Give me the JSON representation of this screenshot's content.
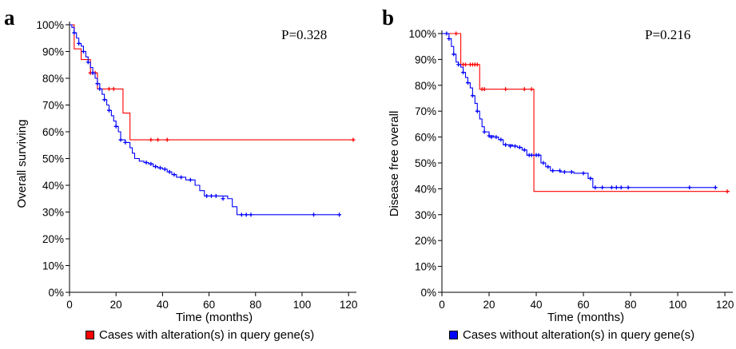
{
  "colors": {
    "altered": "#ff0000",
    "unaltered": "#0000ff",
    "axis": "#000000"
  },
  "legend": {
    "altered_label": "Cases with alteration(s) in query gene(s)",
    "unaltered_label": "Cases without alteration(s) in query gene(s)"
  },
  "chart_data": [
    {
      "type": "line",
      "step": true,
      "panel_label": "a",
      "annotation": "P=0.328",
      "xlabel": "Time (months)",
      "ylabel": "Overall surviving",
      "xlim": [
        0,
        122
      ],
      "ylim": [
        0,
        100
      ],
      "xticks": [
        0,
        20,
        40,
        60,
        80,
        100,
        120
      ],
      "xtick_labels": [
        "0",
        "20",
        "40",
        "60",
        "80",
        "100",
        "120"
      ],
      "yticks": [
        0,
        10,
        20,
        30,
        40,
        50,
        60,
        70,
        80,
        90,
        100
      ],
      "ytick_labels": [
        "0%",
        "10%",
        "20%",
        "30%",
        "40%",
        "50%",
        "60%",
        "70%",
        "80%",
        "90%",
        "100%"
      ],
      "series": [
        {
          "name": "Cases with alteration(s) in query gene(s)",
          "color": "#ff0000",
          "x": [
            0,
            2,
            5,
            9,
            12,
            19,
            23,
            26,
            122
          ],
          "y": [
            100,
            91,
            87,
            82,
            76,
            76,
            67,
            57,
            57
          ],
          "censored_x": [
            9,
            10,
            11,
            17,
            19,
            35,
            38,
            42,
            122
          ],
          "censored_y": [
            82,
            82,
            82,
            76,
            76,
            57,
            57,
            57,
            57
          ]
        },
        {
          "name": "Cases without alteration(s) in query gene(s)",
          "color": "#0000ff",
          "x": [
            0,
            1,
            2,
            3,
            4,
            5,
            6,
            7,
            8,
            9,
            10,
            11,
            12,
            13,
            14,
            15,
            16,
            17,
            18,
            19,
            20,
            21,
            22,
            24,
            26,
            27,
            28,
            30,
            32,
            34,
            36,
            38,
            40,
            42,
            44,
            46,
            50,
            54,
            56,
            58,
            64,
            68,
            70,
            72,
            116
          ],
          "y": [
            100,
            99,
            97,
            95,
            93,
            92,
            90,
            88,
            86,
            84,
            82,
            80,
            78,
            76,
            74,
            72,
            70,
            68,
            66,
            64,
            62,
            60,
            57,
            56,
            54,
            52,
            50,
            49,
            48.5,
            48,
            47,
            46.5,
            46,
            45,
            44,
            43,
            42,
            40,
            38,
            36,
            36,
            35,
            32,
            29,
            29
          ],
          "censored_x": [
            2,
            4,
            6,
            8,
            10,
            12,
            13,
            15,
            17,
            20,
            22,
            24,
            33,
            35,
            37,
            39,
            41,
            43,
            45,
            48,
            52,
            59,
            61,
            63,
            66,
            74,
            76,
            78,
            105,
            116
          ],
          "censored_y": [
            97,
            93,
            90,
            86,
            82,
            78,
            76,
            72,
            68,
            62,
            57,
            56,
            48.5,
            48,
            47,
            46.5,
            46,
            45,
            44,
            43,
            42,
            36,
            36,
            36,
            35,
            29,
            29,
            29,
            29,
            29
          ]
        }
      ]
    },
    {
      "type": "line",
      "step": true,
      "panel_label": "b",
      "annotation": "P=0.216",
      "xlabel": "Time (months)",
      "ylabel": "Disease free overall",
      "xlim": [
        0,
        122
      ],
      "ylim": [
        0,
        100
      ],
      "xticks": [
        0,
        20,
        40,
        60,
        80,
        100,
        120
      ],
      "xtick_labels": [
        "0",
        "20",
        "40",
        "60",
        "80",
        "100",
        "120"
      ],
      "yticks": [
        0,
        10,
        20,
        30,
        40,
        50,
        60,
        70,
        80,
        90,
        100
      ],
      "ytick_labels": [
        "0%",
        "10%",
        "20%",
        "30%",
        "40%",
        "50%",
        "60%",
        "70%",
        "80%",
        "90%",
        "100%"
      ],
      "series": [
        {
          "name": "Cases with alteration(s) in query gene(s)",
          "color": "#ff0000",
          "x": [
            0,
            7,
            8,
            16,
            39,
            122
          ],
          "y": [
            100,
            100,
            88,
            78.5,
            39,
            39
          ],
          "censored_x": [
            6,
            9,
            10,
            12,
            13,
            14,
            15,
            17,
            18,
            27,
            35,
            38,
            121
          ],
          "censored_y": [
            100,
            88,
            88,
            88,
            88,
            88,
            88,
            78.5,
            78.5,
            78.5,
            78.5,
            78.5,
            39
          ]
        },
        {
          "name": "Cases without alteration(s) in query gene(s)",
          "color": "#0000ff",
          "x": [
            0,
            3,
            4,
            5,
            6,
            7,
            8,
            9,
            10,
            11,
            12,
            13,
            14,
            15,
            16,
            17,
            18,
            20,
            22,
            24,
            26,
            30,
            32,
            34,
            36,
            40,
            42,
            44,
            46,
            48,
            50,
            54,
            56,
            62,
            64,
            116
          ],
          "y": [
            100,
            98,
            95,
            92,
            89,
            88,
            87,
            85,
            83,
            81,
            79,
            76,
            73,
            70,
            67,
            64,
            62,
            60.5,
            60,
            59,
            57,
            56.5,
            56,
            55,
            53,
            53,
            50,
            48.5,
            47,
            47,
            46.5,
            46.5,
            46,
            44,
            40.5,
            40.5
          ],
          "censored_x": [
            2,
            3,
            5,
            7,
            9,
            11,
            13,
            15,
            18,
            20,
            21,
            23,
            25,
            27,
            29,
            31,
            33,
            35,
            37,
            38,
            40,
            41,
            43,
            45,
            47,
            50,
            52,
            55,
            60,
            63,
            65,
            68,
            72,
            74,
            76,
            79,
            105,
            116
          ],
          "censored_y": [
            100,
            98,
            92,
            88,
            85,
            81,
            76,
            70,
            62,
            60.5,
            60,
            60,
            59,
            57,
            56.5,
            56.5,
            56,
            55,
            53,
            53,
            53,
            53,
            50,
            48.5,
            47,
            47,
            46.5,
            46.5,
            46,
            44,
            40.5,
            40.5,
            40.5,
            40.5,
            40.5,
            40.5,
            40.5,
            40.5
          ]
        }
      ]
    }
  ]
}
